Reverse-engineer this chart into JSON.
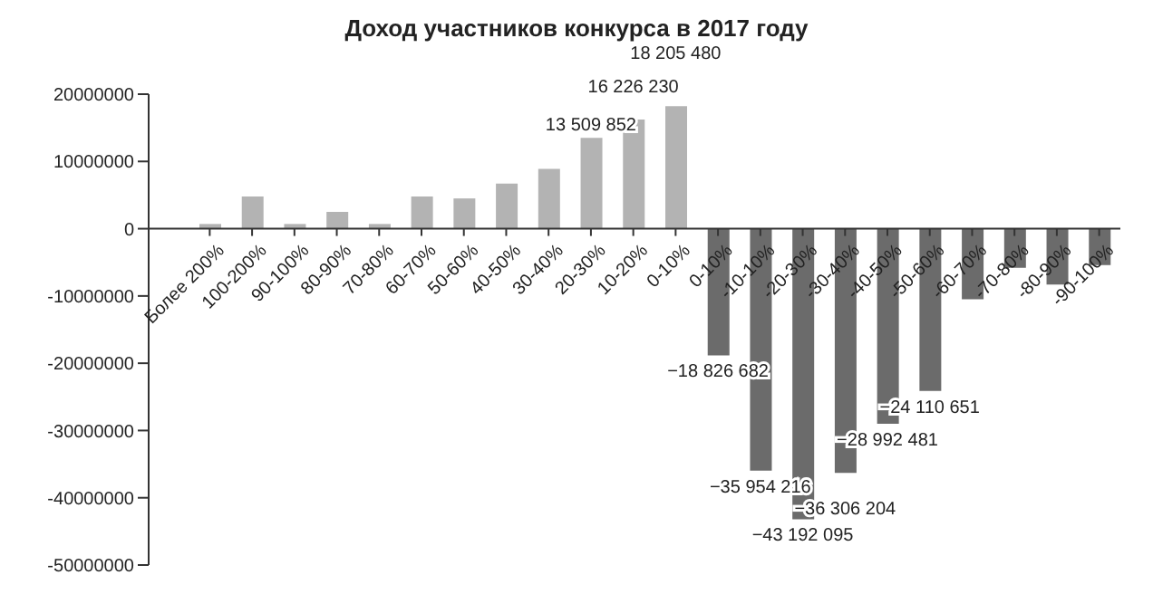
{
  "chart_data": {
    "type": "bar",
    "title": "Доход участников конкурса в 2017 году",
    "categories": [
      "Более 200%",
      "100-200%",
      "90-100%",
      "80-90%",
      "70-80%",
      "60-70%",
      "50-60%",
      "40-50%",
      "30-40%",
      "20-30%",
      "10-20%",
      "0-10%",
      "0-10%",
      "-10-10%",
      "-20-30%",
      "-30-40%",
      "-40-50%",
      "-50-60%",
      "-60-70%",
      "-70-80%",
      "-80-90%",
      "-90-100%"
    ],
    "values": [
      700000,
      4800000,
      700000,
      2500000,
      700000,
      4800000,
      4500000,
      6700000,
      8900000,
      13509852,
      16226230,
      18205480,
      -18826682,
      -35954216,
      -43192095,
      -36306204,
      -28992481,
      -24110651,
      -10500000,
      -5800000,
      -8300000,
      -5400000
    ],
    "colors": [
      "#b3b3b3",
      "#b3b3b3",
      "#b3b3b3",
      "#b3b3b3",
      "#b3b3b3",
      "#b3b3b3",
      "#b3b3b3",
      "#b3b3b3",
      "#b3b3b3",
      "#b3b3b3",
      "#b3b3b3",
      "#b3b3b3",
      "#6b6b6b",
      "#6b6b6b",
      "#6b6b6b",
      "#6b6b6b",
      "#6b6b6b",
      "#6b6b6b",
      "#6b6b6b",
      "#6b6b6b",
      "#6b6b6b",
      "#6b6b6b"
    ],
    "value_labels": [
      null,
      null,
      null,
      null,
      null,
      null,
      null,
      null,
      null,
      "13 509 852",
      "16 226 230",
      "18 205 480",
      "−18 826 682",
      "−35 954 216",
      "−43 192 095",
      "−36 306 204",
      "−28 992 481",
      "−24 110 651",
      null,
      null,
      null,
      null
    ],
    "ylim": [
      -50000000,
      20000000
    ],
    "yticks": [
      -50000000,
      -40000000,
      -30000000,
      -20000000,
      -10000000,
      0,
      10000000,
      20000000
    ]
  }
}
